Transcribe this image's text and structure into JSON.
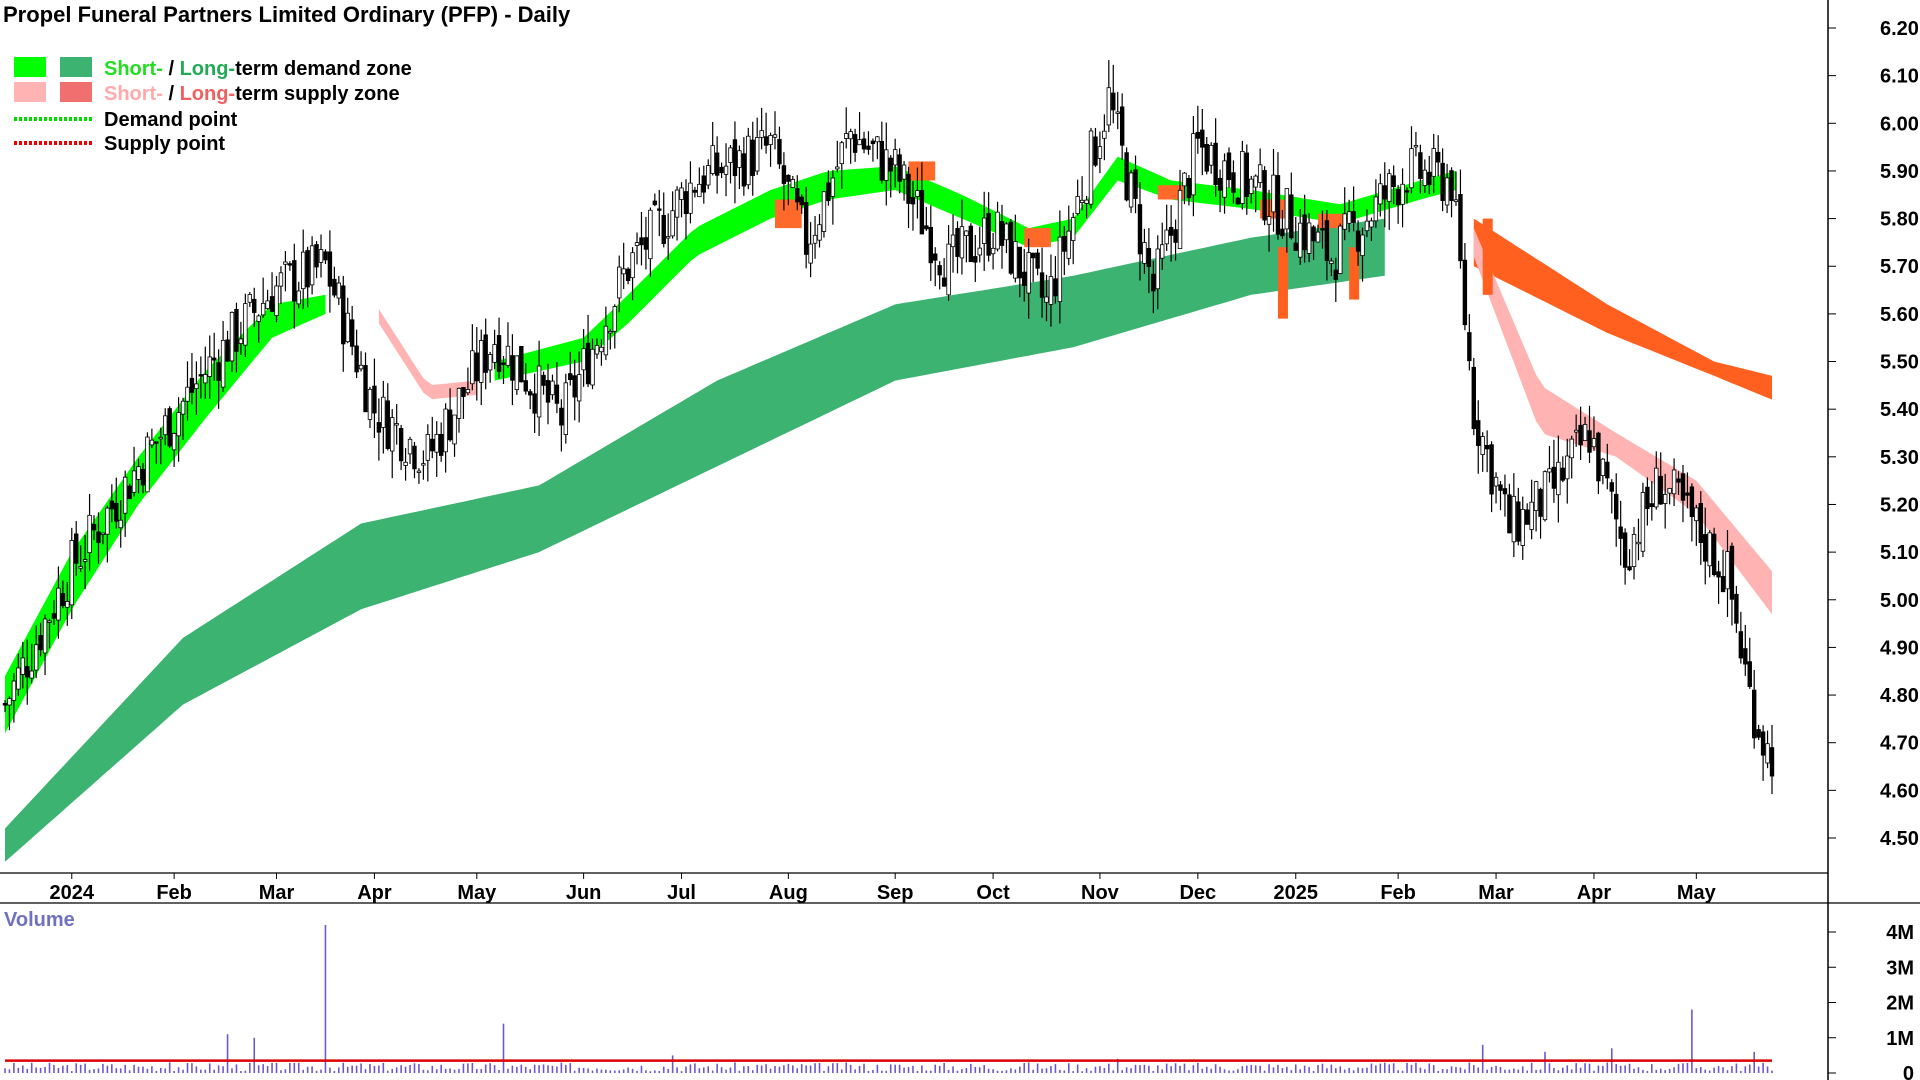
{
  "chart_data": {
    "type": "candlestick",
    "title": "Propel Funeral Partners Limited Ordinary (PFP) - Daily",
    "legend": [
      {
        "label_short": "Short-",
        "sep": " / ",
        "label_long": "Long-",
        "rest": "term demand zone",
        "short_color": "#00ff00",
        "long_color": "#3cb371",
        "short_text_color": "#22dd22",
        "long_text_color": "#22aa55"
      },
      {
        "label_short": "Short-",
        "sep": " / ",
        "label_long": "Long-",
        "rest": "term supply zone",
        "short_color": "#ffb3b3",
        "long_color": "#f07070",
        "short_text_color": "#ffaaaa",
        "long_text_color": "#f06060"
      },
      {
        "label": "Demand point",
        "color": "#00dd00",
        "style": "dotted"
      },
      {
        "label": "Supply point",
        "color": "#ee0000",
        "style": "dotted"
      }
    ],
    "price_axis": {
      "ticks": [
        "6.20",
        "6.10",
        "6.00",
        "5.90",
        "5.80",
        "5.70",
        "5.60",
        "5.50",
        "5.40",
        "5.30",
        "5.20",
        "5.10",
        "5.00",
        "4.90",
        "4.80",
        "4.70",
        "4.60",
        "4.50"
      ],
      "range": [
        4.43,
        6.26
      ]
    },
    "x_labels": [
      "2024",
      "Feb",
      "Mar",
      "Apr",
      "May",
      "Jun",
      "Jul",
      "Aug",
      "Sep",
      "Oct",
      "Nov",
      "Dec",
      "2025",
      "Feb",
      "Mar",
      "Apr",
      "May"
    ],
    "x_label_index": [
      15,
      38,
      61,
      83,
      106,
      130,
      152,
      176,
      200,
      222,
      246,
      268,
      290,
      313,
      335,
      357,
      380
    ],
    "num_bars": 398,
    "close_anchors": [
      [
        0,
        4.78
      ],
      [
        15,
        5.07
      ],
      [
        30,
        5.28
      ],
      [
        45,
        5.48
      ],
      [
        60,
        5.65
      ],
      [
        72,
        5.7
      ],
      [
        83,
        5.4
      ],
      [
        95,
        5.3
      ],
      [
        110,
        5.55
      ],
      [
        125,
        5.38
      ],
      [
        140,
        5.7
      ],
      [
        155,
        5.88
      ],
      [
        172,
        5.95
      ],
      [
        180,
        5.75
      ],
      [
        190,
        5.98
      ],
      [
        200,
        5.9
      ],
      [
        212,
        5.7
      ],
      [
        222,
        5.78
      ],
      [
        234,
        5.62
      ],
      [
        248,
        6.05
      ],
      [
        258,
        5.65
      ],
      [
        268,
        5.95
      ],
      [
        283,
        5.85
      ],
      [
        298,
        5.72
      ],
      [
        315,
        5.9
      ],
      [
        325,
        5.88
      ],
      [
        330,
        5.4
      ],
      [
        338,
        5.15
      ],
      [
        347,
        5.22
      ],
      [
        356,
        5.35
      ],
      [
        364,
        5.1
      ],
      [
        372,
        5.25
      ],
      [
        380,
        5.15
      ],
      [
        387,
        5.05
      ],
      [
        392,
        4.8
      ],
      [
        396,
        4.68
      ]
    ],
    "demand_short_zone": [
      [
        0,
        4.72,
        4.84
      ],
      [
        15,
        4.98,
        5.1
      ],
      [
        30,
        5.2,
        5.3
      ],
      [
        45,
        5.38,
        5.48
      ],
      [
        60,
        5.55,
        5.62
      ],
      [
        72,
        5.6,
        5.64
      ]
    ],
    "supply_short_zone": [
      [
        84,
        5.58,
        5.61
      ],
      [
        95,
        5.42,
        5.45
      ],
      [
        106,
        5.43,
        5.46
      ]
    ],
    "long_demand_zone": [
      [
        0,
        4.45,
        4.52
      ],
      [
        40,
        4.78,
        4.92
      ],
      [
        80,
        4.98,
        5.16
      ],
      [
        120,
        5.1,
        5.24
      ],
      [
        160,
        5.28,
        5.46
      ],
      [
        200,
        5.46,
        5.62
      ],
      [
        240,
        5.53,
        5.68
      ],
      [
        280,
        5.64,
        5.76
      ],
      [
        310,
        5.68,
        5.8
      ]
    ],
    "long_supply_zone": [
      [
        330,
        5.7,
        5.8
      ],
      [
        360,
        5.56,
        5.62
      ],
      [
        384,
        5.47,
        5.5
      ],
      [
        397,
        5.42,
        5.47
      ]
    ],
    "late_supply_short": [
      [
        330,
        5.72,
        5.78
      ],
      [
        345,
        5.35,
        5.45
      ],
      [
        362,
        5.3,
        5.35
      ],
      [
        380,
        5.18,
        5.25
      ],
      [
        397,
        4.97,
        5.06
      ]
    ],
    "volume_axis": {
      "title": "Volume",
      "ticks": [
        "4M",
        "3M",
        "2M",
        "1M",
        "0"
      ],
      "range": [
        0,
        4.5
      ]
    },
    "volume_spikes": [
      [
        37,
        0.3
      ],
      [
        50,
        1.1
      ],
      [
        56,
        1.0
      ],
      [
        72,
        4.2
      ],
      [
        112,
        1.4
      ],
      [
        150,
        0.5
      ],
      [
        230,
        0.3
      ],
      [
        250,
        0.4
      ],
      [
        332,
        0.8
      ],
      [
        346,
        0.6
      ],
      [
        361,
        0.7
      ],
      [
        379,
        1.8
      ],
      [
        393,
        0.6
      ]
    ],
    "volume_ma": 0.35,
    "colors": {
      "volume_bar": "#6a5acd",
      "volume_ma": "#dd0000",
      "candle": "#000000",
      "short_demand": "#00ff00",
      "long_demand": "#3cb371",
      "short_supply": "#ffb3b3",
      "long_supply": "#ff6020"
    }
  }
}
